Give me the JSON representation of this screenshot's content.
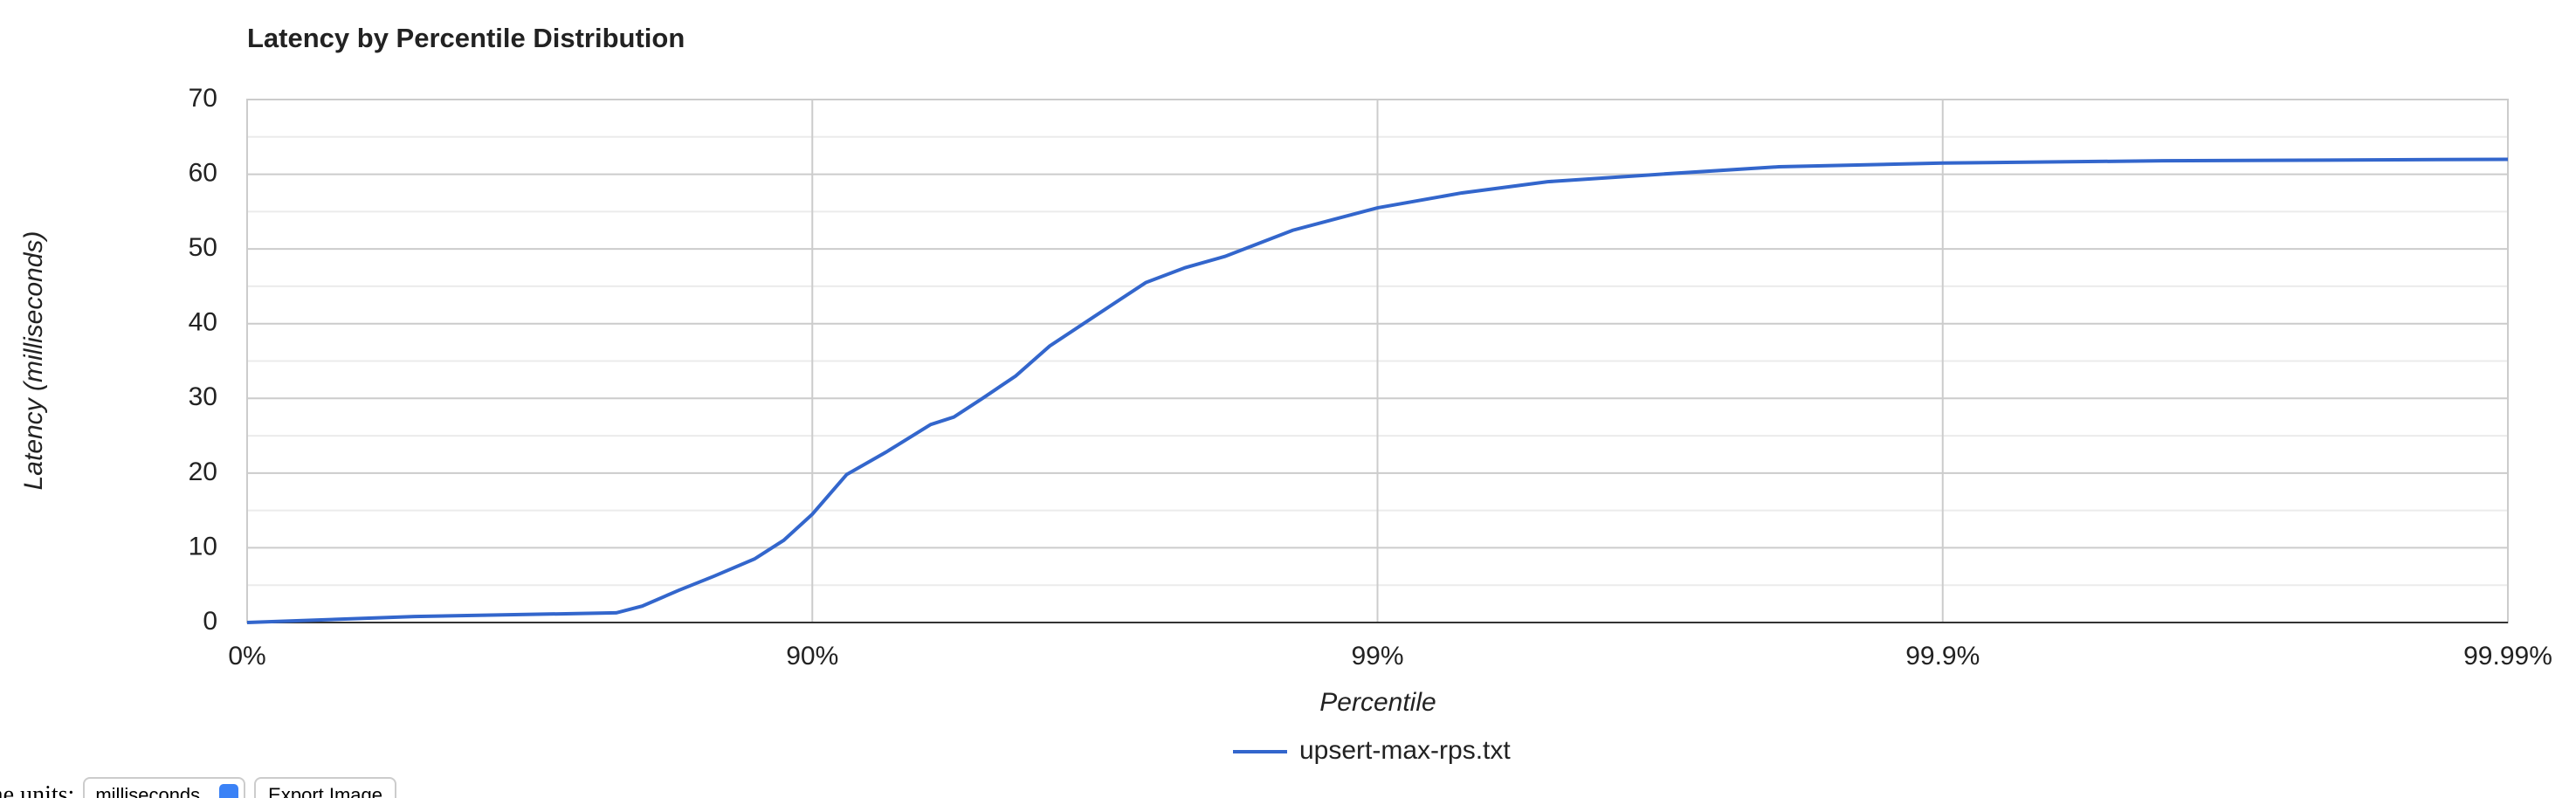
{
  "chart_data": {
    "type": "line",
    "title": "Latency by Percentile Distribution",
    "x_label": "Percentile",
    "y_label": "Latency (milliseconds)",
    "xscale": "log",
    "x": [
      1,
      1.98,
      4.5,
      5,
      5.8,
      6.7,
      7.9,
      8.9,
      10,
      11.5,
      13.5,
      16.2,
      17.8,
      20,
      22.9,
      26.3,
      31.6,
      38.9,
      45.7,
      53.7,
      70.8,
      100,
      141,
      200,
      316,
      513,
      1000,
      2455,
      10000
    ],
    "series": [
      {
        "name": "upsert-max-rps.txt",
        "color": "#3366cc",
        "values": [
          0,
          0.8,
          1.3,
          2.2,
          4.3,
          6.2,
          8.5,
          11,
          14.5,
          19.8,
          22.8,
          26.5,
          27.5,
          30,
          33,
          37,
          41,
          45.5,
          47.5,
          49,
          52.5,
          55.5,
          57.5,
          59,
          60,
          61,
          61.5,
          61.8,
          62
        ]
      }
    ],
    "xlim": [
      1,
      10000
    ],
    "xticks": [
      {
        "value": 1,
        "label": "0%"
      },
      {
        "value": 10,
        "label": "90%"
      },
      {
        "value": 100,
        "label": "99%"
      },
      {
        "value": 1000,
        "label": "99.9%"
      },
      {
        "value": 10000,
        "label": "99.99%"
      }
    ],
    "ylim": [
      0,
      70
    ],
    "yticks": [
      0,
      10,
      20,
      30,
      40,
      50,
      60,
      70
    ],
    "yminorticks": [
      5,
      15,
      25,
      35,
      45,
      55,
      65
    ],
    "grid": true,
    "legend": "bottom"
  },
  "controls": {
    "units_label": "Time units:",
    "units_value": "milliseconds",
    "export_button": "Export Image"
  }
}
